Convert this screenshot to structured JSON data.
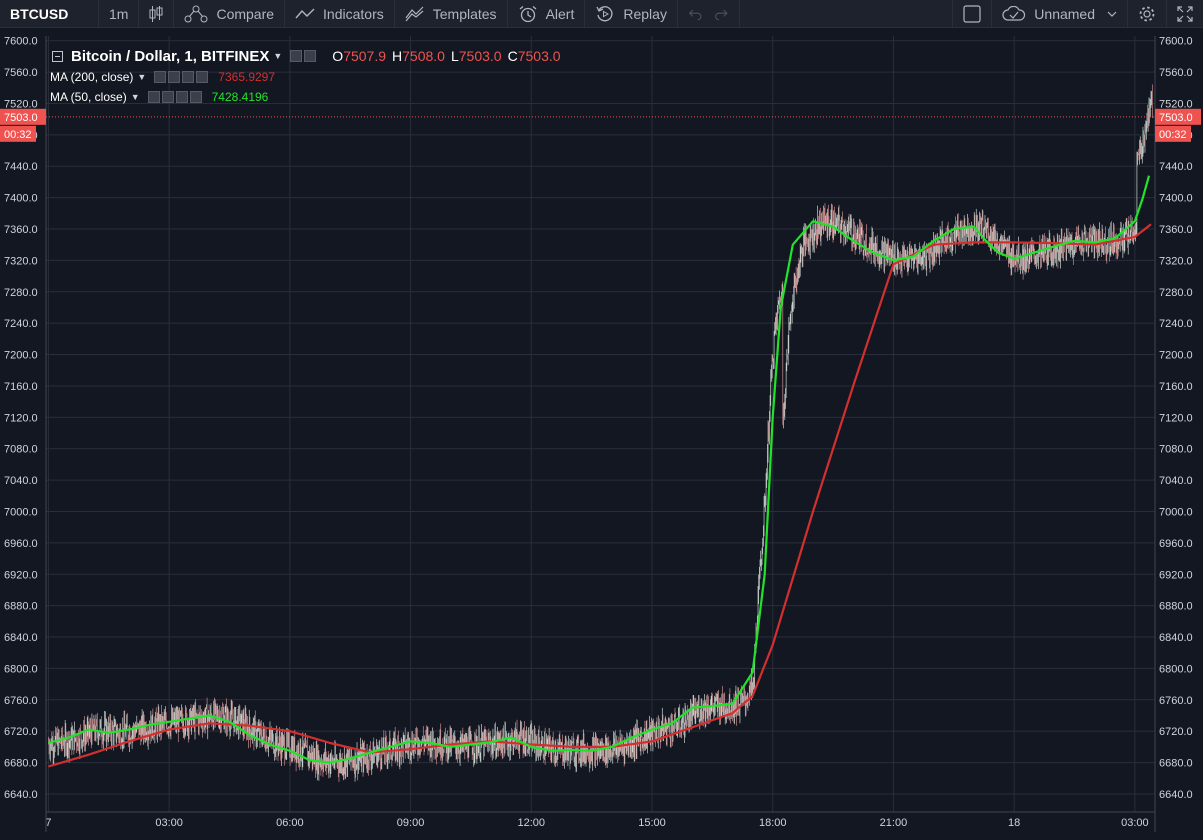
{
  "toolbar": {
    "symbol": "BTCUSD",
    "interval": "1m",
    "compare": "Compare",
    "indicators": "Indicators",
    "templates": "Templates",
    "alert": "Alert",
    "replay": "Replay",
    "layout_name": "Unnamed"
  },
  "legend": {
    "title": "Bitcoin / Dollar, 1, BITFINEX",
    "open_key": "O",
    "open": "7507.9",
    "high_key": "H",
    "high": "7508.0",
    "low_key": "L",
    "low": "7503.0",
    "close_key": "C",
    "close": "7503.0",
    "ma200_label": "MA (200, close)",
    "ma200_value": "7365.9297",
    "ma50_label": "MA (50, close)",
    "ma50_value": "7428.4196"
  },
  "price_badge": {
    "price": "7503.0",
    "countdown": "00:32"
  },
  "colors": {
    "background": "#131722",
    "grid": "#2a2e39",
    "candle_up": "#c9d4cd",
    "candle_down": "#c98d8d",
    "ma50": "#22e22a",
    "ma200": "#d32f2f",
    "badge": "#ef5350"
  },
  "chart_data": {
    "type": "candlestick",
    "y_ticks": [
      "7600.0",
      "7560.0",
      "7520.0",
      "7480.0",
      "7440.0",
      "7400.0",
      "7360.0",
      "7320.0",
      "7280.0",
      "7240.0",
      "7200.0",
      "7160.0",
      "7120.0",
      "7080.0",
      "7040.0",
      "7000.0",
      "6960.0",
      "6920.0",
      "6880.0",
      "6840.0",
      "6800.0",
      "6760.0",
      "6720.0",
      "6680.0",
      "6640.0"
    ],
    "ylim": [
      6617,
      7606
    ],
    "x_ticks": [
      {
        "label": "7",
        "hour": 0
      },
      {
        "label": "03:00",
        "hour": 3
      },
      {
        "label": "06:00",
        "hour": 6
      },
      {
        "label": "09:00",
        "hour": 9
      },
      {
        "label": "12:00",
        "hour": 12
      },
      {
        "label": "15:00",
        "hour": 15
      },
      {
        "label": "18:00",
        "hour": 18
      },
      {
        "label": "21:00",
        "hour": 21
      },
      {
        "label": "18",
        "hour": 24
      },
      {
        "label": "03:00",
        "hour": 27
      }
    ],
    "xlim": [
      -0.06,
      27.5
    ],
    "last_price": 7503.0,
    "series": [
      {
        "name": "MA (200, close)",
        "points": [
          [
            0,
            6675
          ],
          [
            1,
            6690
          ],
          [
            2,
            6707
          ],
          [
            3,
            6722
          ],
          [
            4,
            6730
          ],
          [
            5,
            6727
          ],
          [
            6,
            6720
          ],
          [
            7,
            6705
          ],
          [
            8,
            6693
          ],
          [
            9,
            6697
          ],
          [
            10,
            6703
          ],
          [
            11,
            6707
          ],
          [
            12,
            6703
          ],
          [
            13,
            6700
          ],
          [
            14,
            6700
          ],
          [
            15,
            6707
          ],
          [
            16,
            6725
          ],
          [
            17,
            6743
          ],
          [
            17.5,
            6765
          ],
          [
            18,
            6830
          ],
          [
            19,
            7000
          ],
          [
            20,
            7160
          ],
          [
            21,
            7315
          ],
          [
            22,
            7340
          ],
          [
            23,
            7343
          ],
          [
            24,
            7343
          ],
          [
            25,
            7342
          ],
          [
            26,
            7340
          ],
          [
            27,
            7350
          ],
          [
            27.4,
            7366
          ]
        ]
      },
      {
        "name": "MA (50, close)",
        "points": [
          [
            0,
            6705
          ],
          [
            0.5,
            6712
          ],
          [
            1,
            6722
          ],
          [
            1.5,
            6718
          ],
          [
            2,
            6722
          ],
          [
            2.5,
            6728
          ],
          [
            3,
            6732
          ],
          [
            3.5,
            6736
          ],
          [
            4,
            6740
          ],
          [
            4.5,
            6732
          ],
          [
            5,
            6715
          ],
          [
            5.5,
            6703
          ],
          [
            6,
            6695
          ],
          [
            6.5,
            6683
          ],
          [
            7,
            6680
          ],
          [
            7.5,
            6685
          ],
          [
            8,
            6693
          ],
          [
            8.5,
            6700
          ],
          [
            9,
            6707
          ],
          [
            9.5,
            6705
          ],
          [
            10,
            6700
          ],
          [
            10.5,
            6703
          ],
          [
            11,
            6706
          ],
          [
            11.5,
            6712
          ],
          [
            12,
            6700
          ],
          [
            12.5,
            6695
          ],
          [
            13,
            6696
          ],
          [
            13.5,
            6695
          ],
          [
            14,
            6700
          ],
          [
            14.5,
            6712
          ],
          [
            15,
            6722
          ],
          [
            15.5,
            6730
          ],
          [
            16,
            6750
          ],
          [
            16.5,
            6752
          ],
          [
            17,
            6755
          ],
          [
            17.5,
            6795
          ],
          [
            17.8,
            6920
          ],
          [
            18,
            7120
          ],
          [
            18.2,
            7260
          ],
          [
            18.5,
            7340
          ],
          [
            19,
            7370
          ],
          [
            19.5,
            7363
          ],
          [
            20,
            7345
          ],
          [
            20.5,
            7330
          ],
          [
            21,
            7320
          ],
          [
            21.5,
            7325
          ],
          [
            22,
            7345
          ],
          [
            22.5,
            7360
          ],
          [
            23,
            7363
          ],
          [
            23.3,
            7345
          ],
          [
            23.6,
            7330
          ],
          [
            24,
            7322
          ],
          [
            24.5,
            7330
          ],
          [
            25,
            7338
          ],
          [
            25.5,
            7345
          ],
          [
            26,
            7343
          ],
          [
            26.5,
            7348
          ],
          [
            27,
            7370
          ],
          [
            27.2,
            7400
          ],
          [
            27.35,
            7428
          ]
        ]
      }
    ]
  }
}
